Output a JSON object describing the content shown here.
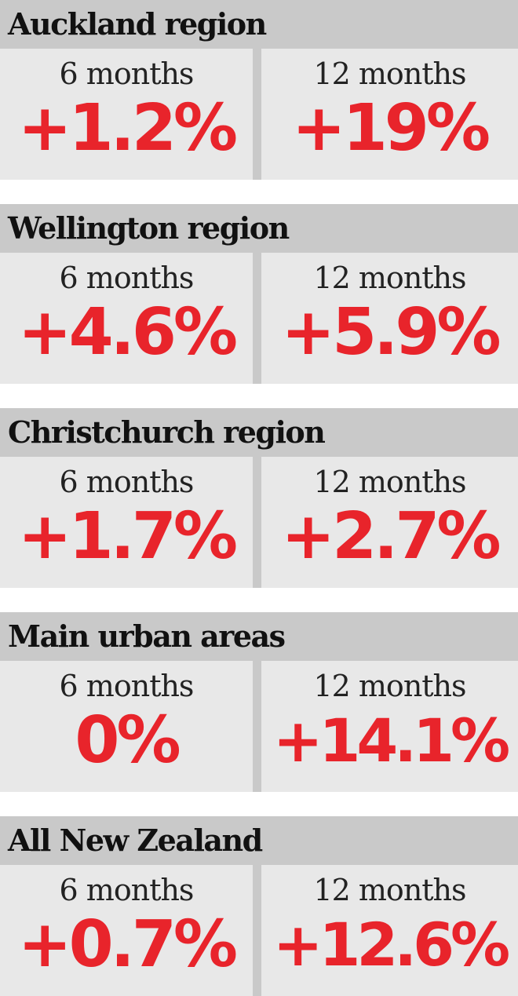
{
  "colors": {
    "header_bg": "#c9c9c9",
    "cell_bg": "#e8e8e8",
    "value_red": "#e8242b",
    "title_text": "#111111"
  },
  "panels": [
    {
      "title": "Auckland region",
      "left_period": "6 months",
      "left_value": "+1.2%",
      "right_period": "12 months",
      "right_value": "+19%"
    },
    {
      "title": "Wellington region",
      "left_period": "6 months",
      "left_value": "+4.6%",
      "right_period": "12 months",
      "right_value": "+5.9%"
    },
    {
      "title": "Christchurch region",
      "left_period": "6 months",
      "left_value": "+1.7%",
      "right_period": "12 months",
      "right_value": "+2.7%"
    },
    {
      "title": "Main urban areas",
      "left_period": "6 months",
      "left_value": "0%",
      "right_period": "12 months",
      "right_value": "+14.1%"
    },
    {
      "title": "All New Zealand",
      "left_period": "6 months",
      "left_value": "+0.7%",
      "right_period": "12 months",
      "right_value": "+12.6%"
    }
  ]
}
